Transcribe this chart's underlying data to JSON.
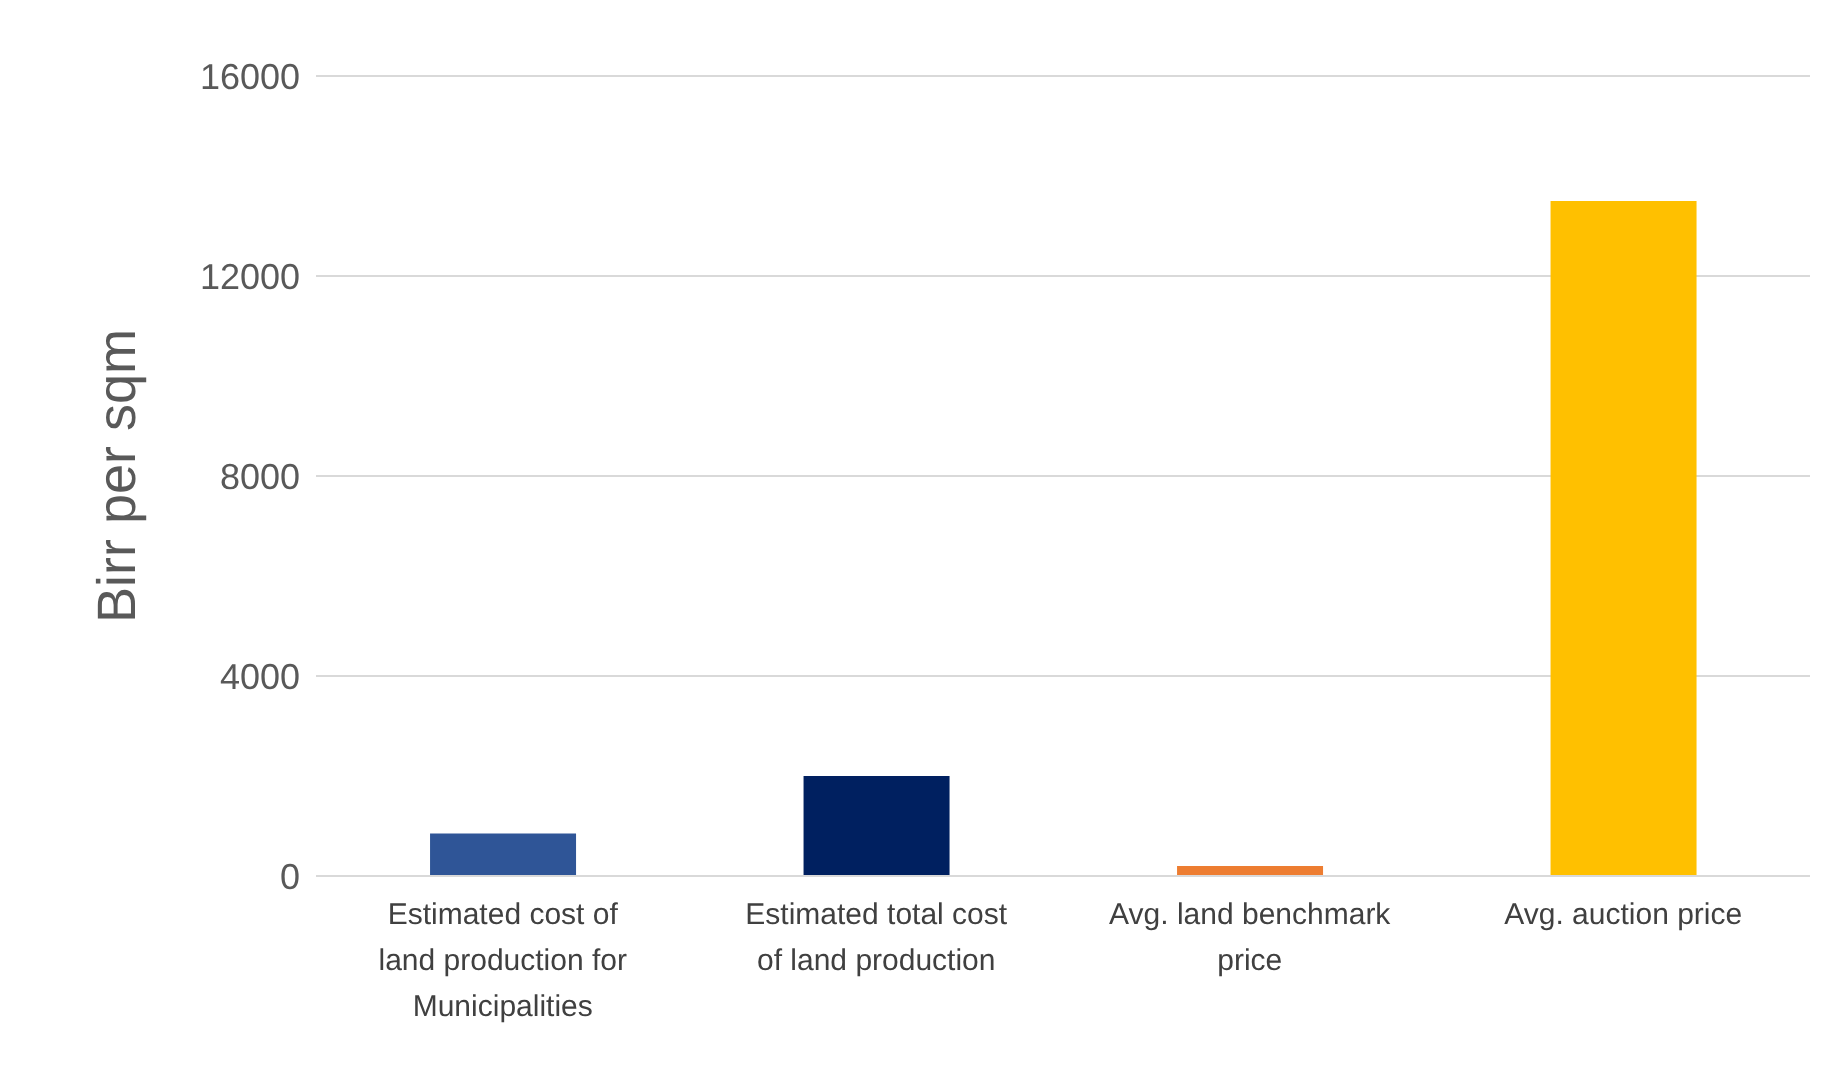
{
  "chart_data": {
    "type": "bar",
    "ylabel": "Birr per sqm",
    "categories": [
      "Estimated cost of land production for Municipalities",
      "Estimated total cost of land production",
      "Avg. land benchmark price",
      "Avg. auction price"
    ],
    "values": [
      850,
      2000,
      200,
      13500
    ],
    "colors": [
      "#2f5597",
      "#002060",
      "#ed7d31",
      "#ffc000"
    ],
    "ylim": [
      0,
      16000
    ],
    "yticks": [
      0,
      4000,
      8000,
      12000,
      16000
    ],
    "grid": "y"
  }
}
